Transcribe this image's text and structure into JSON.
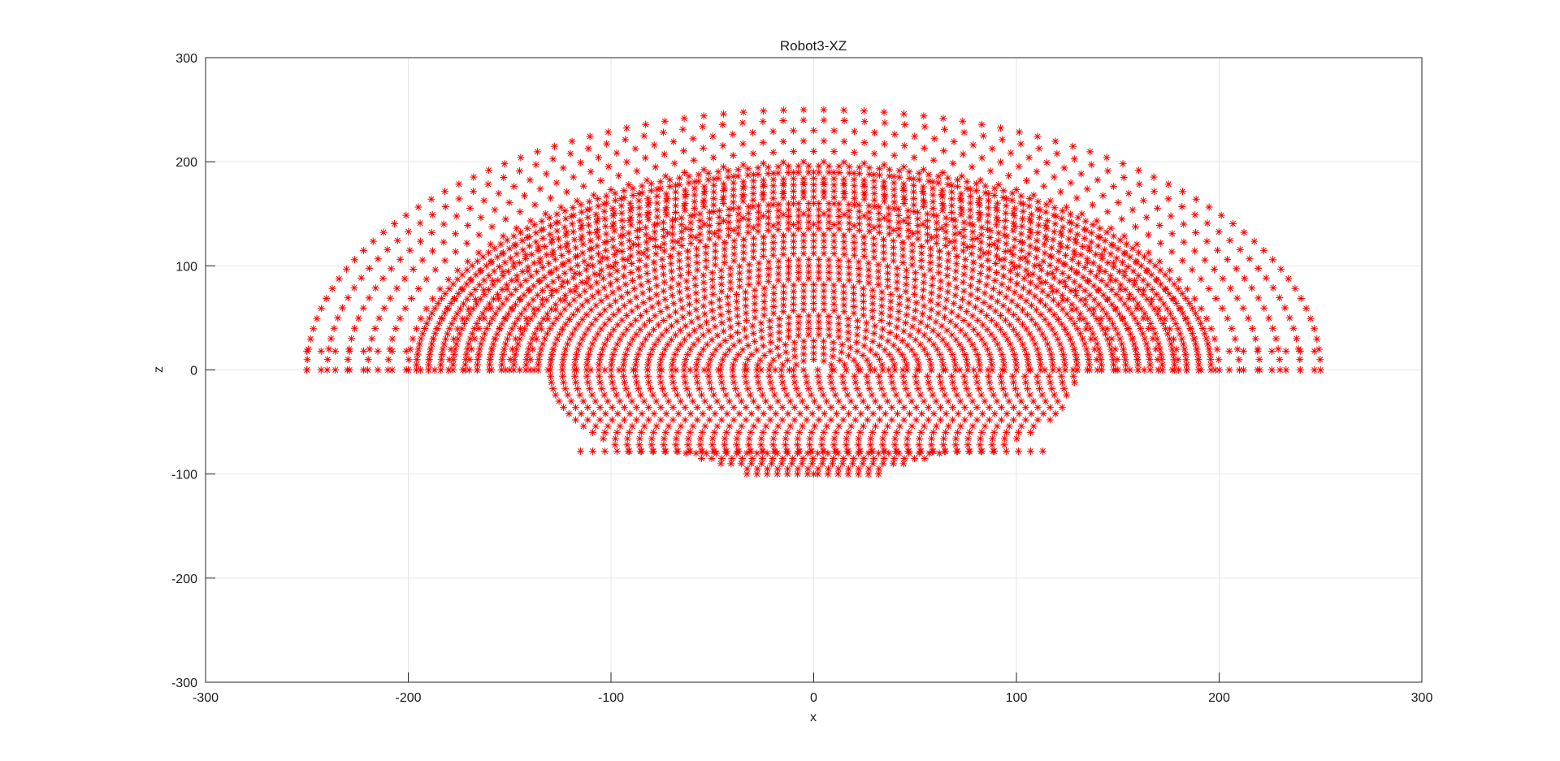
{
  "chart_data": {
    "type": "scatter",
    "title": "Robot3-XZ",
    "xlabel": "x",
    "ylabel": "z",
    "xlim": [
      -300,
      300
    ],
    "ylim": [
      -300,
      300
    ],
    "xticks": [
      -300,
      -200,
      -100,
      0,
      100,
      200,
      300
    ],
    "yticks": [
      -300,
      -200,
      -100,
      0,
      100,
      200,
      300
    ],
    "grid": true,
    "marker": "*",
    "series": [
      {
        "color": "#ff0000",
        "description_of_shape": "",
        "components": [
          {
            "shape": "upper-semicircle-band",
            "cx": 0,
            "cz": 0,
            "r_min": 130,
            "r_max": 250,
            "z_min": 0
          },
          {
            "shape": "upper-semicircle-band",
            "cx": 0,
            "cz": 0,
            "r_min": 0,
            "r_max": 200,
            "z_min": 0
          },
          {
            "shape": "lower-bowl",
            "cx": 0,
            "cz": 0,
            "r_max": 130,
            "z_min": -78
          },
          {
            "shape": "lower-bowl",
            "cx": 0,
            "cz": 0,
            "r_max": 100,
            "z_min": -100
          }
        ]
      }
    ]
  }
}
